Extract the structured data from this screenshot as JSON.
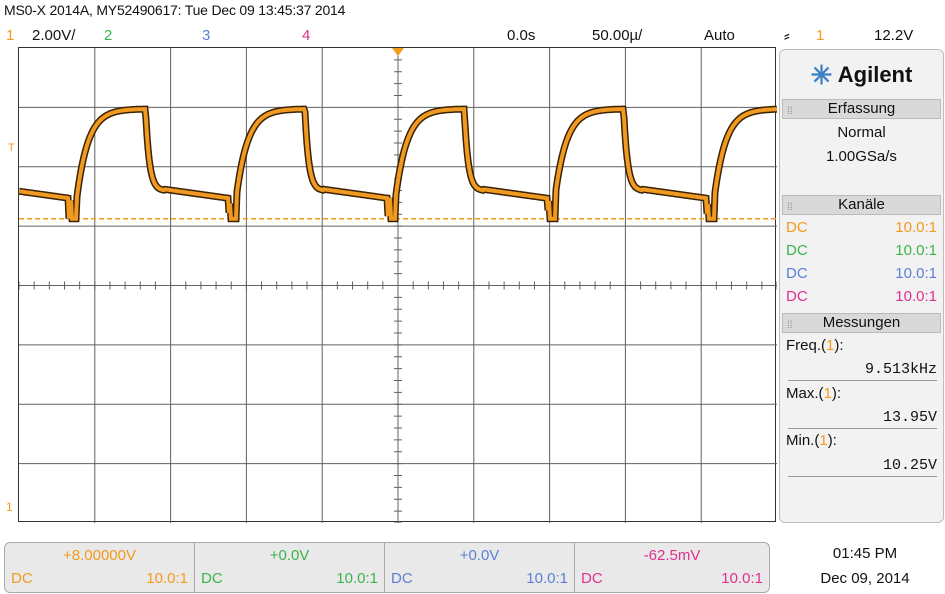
{
  "title": "MS0-X 2014A, MY52490617: Tue Dec 09 13:45:37 2014",
  "colors": {
    "ch1": "#f29b1d",
    "ch2": "#3bb54a",
    "ch3": "#5b7fd6",
    "ch4": "#e0318e",
    "trace": "#f09a22",
    "trace_edge": "#3a2205",
    "grid": "#606060",
    "panel_header": "#d9d9d9"
  },
  "status": {
    "ch1_num": "1",
    "ch1_scale": "2.00V/",
    "ch2_num": "2",
    "ch3_num": "3",
    "ch4_num": "4",
    "time_offset": "0.0s",
    "time_scale": "50.00µ/",
    "trigger_mode": "Auto",
    "trigger_icon": "rising-edge-icon",
    "trigger_source": "1",
    "trigger_level": "12.2V"
  },
  "screen_markers": {
    "trigger_marker": "T",
    "ground_marker": "1"
  },
  "waveform": {
    "frequency_khz": 9.513,
    "max_v": 13.95,
    "min_v": 10.25,
    "offset_v": 8.0,
    "volts_per_div": 2.0
  },
  "panel": {
    "brand": "Agilent",
    "acquisition": {
      "header": "Erfassung",
      "mode": "Normal",
      "rate": "1.00GSa/s"
    },
    "channels": {
      "header": "Kanäle",
      "rows": [
        {
          "coupling": "DC",
          "probe": "10.0:1"
        },
        {
          "coupling": "DC",
          "probe": "10.0:1"
        },
        {
          "coupling": "DC",
          "probe": "10.0:1"
        },
        {
          "coupling": "DC",
          "probe": "10.0:1"
        }
      ]
    },
    "measurements": {
      "header": "Messungen",
      "items": [
        {
          "label": "Freq.(",
          "src": "1",
          "end": "):",
          "value": "9.513kHz"
        },
        {
          "label": "Max.(",
          "src": "1",
          "end": "):",
          "value": "13.95V"
        },
        {
          "label": "Min.(",
          "src": "1",
          "end": "):",
          "value": "10.25V"
        }
      ]
    }
  },
  "bottom_channels": [
    {
      "offset": "+8.00000V",
      "coupling": "DC",
      "probe": "10.0:1"
    },
    {
      "offset": "+0.0V",
      "coupling": "DC",
      "probe": "10.0:1"
    },
    {
      "offset": "+0.0V",
      "coupling": "DC",
      "probe": "10.0:1"
    },
    {
      "offset": "-62.5mV",
      "coupling": "DC",
      "probe": "10.0:1"
    }
  ],
  "clock": {
    "time": "01:45 PM",
    "date": "Dec 09, 2014"
  }
}
